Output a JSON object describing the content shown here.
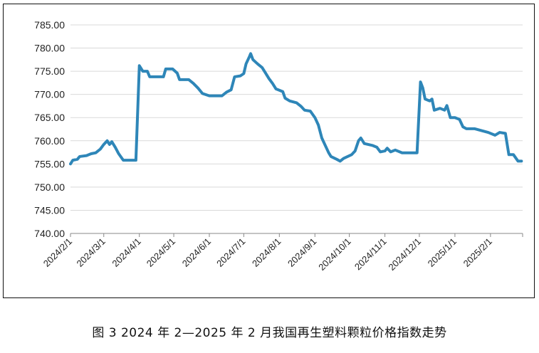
{
  "caption": "图 3  2024 年 2—2025 年 2 月我国再生塑料颗粒价格指数走势",
  "colors": {
    "series": "#2e86b8",
    "grid": "#d9d9d9",
    "axis": "#888888",
    "text": "#222222"
  },
  "chart_data": {
    "type": "line",
    "title": "",
    "xlabel": "",
    "ylabel": "",
    "ylim": [
      740,
      785
    ],
    "y_ticks": [
      "740.00",
      "745.00",
      "750.00",
      "755.00",
      "760.00",
      "765.00",
      "770.00",
      "775.00",
      "780.00",
      "785.00"
    ],
    "x_ticks": [
      "2024/2/1",
      "2024/3/1",
      "2024/4/1",
      "2024/5/1",
      "2024/6/1",
      "2024/7/1",
      "2024/8/1",
      "2024/9/1",
      "2024/10/1",
      "2024/11/1",
      "2024/12/1",
      "2025/1/1",
      "2025/2/1"
    ],
    "grid": true,
    "legend": "none",
    "series": [
      {
        "points": [
          [
            "2024/2/1",
            755.0
          ],
          [
            "2024/2/3",
            755.8
          ],
          [
            "2024/2/7",
            756.0
          ],
          [
            "2024/2/9",
            756.6
          ],
          [
            "2024/2/15",
            756.8
          ],
          [
            "2024/2/19",
            757.2
          ],
          [
            "2024/2/23",
            757.4
          ],
          [
            "2024/2/27",
            758.2
          ],
          [
            "2024/3/1",
            759.2
          ],
          [
            "2024/3/4",
            760.0
          ],
          [
            "2024/3/6",
            759.2
          ],
          [
            "2024/3/8",
            759.8
          ],
          [
            "2024/3/11",
            758.6
          ],
          [
            "2024/3/14",
            757.2
          ],
          [
            "2024/3/18",
            755.8
          ],
          [
            "2024/3/29",
            755.8
          ],
          [
            "2024/4/1",
            776.2
          ],
          [
            "2024/4/4",
            775.0
          ],
          [
            "2024/4/8",
            775.0
          ],
          [
            "2024/4/10",
            773.8
          ],
          [
            "2024/4/22",
            773.8
          ],
          [
            "2024/4/24",
            775.5
          ],
          [
            "2024/4/30",
            775.5
          ],
          [
            "2024/5/4",
            774.6
          ],
          [
            "2024/5/6",
            773.2
          ],
          [
            "2024/5/14",
            773.2
          ],
          [
            "2024/5/18",
            772.4
          ],
          [
            "2024/5/22",
            771.4
          ],
          [
            "2024/5/26",
            770.2
          ],
          [
            "2024/6/1",
            769.7
          ],
          [
            "2024/6/12",
            769.7
          ],
          [
            "2024/6/16",
            770.5
          ],
          [
            "2024/6/20",
            771.0
          ],
          [
            "2024/6/23",
            773.8
          ],
          [
            "2024/6/28",
            774.0
          ],
          [
            "2024/7/1",
            774.5
          ],
          [
            "2024/7/3",
            776.6
          ],
          [
            "2024/7/6",
            778.2
          ],
          [
            "2024/7/7",
            778.8
          ],
          [
            "2024/7/9",
            777.5
          ],
          [
            "2024/7/13",
            776.6
          ],
          [
            "2024/7/17",
            775.8
          ],
          [
            "2024/7/20",
            774.6
          ],
          [
            "2024/7/23",
            773.4
          ],
          [
            "2024/7/26",
            772.4
          ],
          [
            "2024/7/29",
            771.2
          ],
          [
            "2024/8/4",
            770.6
          ],
          [
            "2024/8/6",
            769.2
          ],
          [
            "2024/8/10",
            768.6
          ],
          [
            "2024/8/16",
            768.2
          ],
          [
            "2024/8/20",
            767.4
          ],
          [
            "2024/8/23",
            766.6
          ],
          [
            "2024/8/28",
            766.4
          ],
          [
            "2024/9/1",
            765.0
          ],
          [
            "2024/9/4",
            763.4
          ],
          [
            "2024/9/7",
            760.6
          ],
          [
            "2024/9/10",
            759.0
          ],
          [
            "2024/9/13",
            757.4
          ],
          [
            "2024/9/15",
            756.6
          ],
          [
            "2024/9/20",
            756.0
          ],
          [
            "2024/9/23",
            755.6
          ],
          [
            "2024/9/26",
            756.2
          ],
          [
            "2024/10/3",
            757.0
          ],
          [
            "2024/10/6",
            757.8
          ],
          [
            "2024/10/9",
            760.0
          ],
          [
            "2024/10/11",
            760.6
          ],
          [
            "2024/10/14",
            759.4
          ],
          [
            "2024/10/21",
            759.0
          ],
          [
            "2024/10/25",
            758.6
          ],
          [
            "2024/10/28",
            757.6
          ],
          [
            "2024/11/1",
            757.8
          ],
          [
            "2024/11/3",
            758.4
          ],
          [
            "2024/11/6",
            757.6
          ],
          [
            "2024/11/10",
            758.0
          ],
          [
            "2024/11/16",
            757.4
          ],
          [
            "2024/11/19",
            757.4
          ],
          [
            "2024/11/29",
            757.4
          ],
          [
            "2024/12/2",
            772.7
          ],
          [
            "2024/12/4",
            771.4
          ],
          [
            "2024/12/6",
            769.0
          ],
          [
            "2024/12/10",
            768.6
          ],
          [
            "2024/12/12",
            769.0
          ],
          [
            "2024/12/14",
            766.6
          ],
          [
            "2024/12/19",
            767.0
          ],
          [
            "2024/12/23",
            766.6
          ],
          [
            "2024/12/25",
            767.6
          ],
          [
            "2024/12/28",
            765.0
          ],
          [
            "2025/1/1",
            765.0
          ],
          [
            "2025/1/5",
            764.6
          ],
          [
            "2025/1/8",
            763.0
          ],
          [
            "2025/1/11",
            762.6
          ],
          [
            "2025/1/18",
            762.6
          ],
          [
            "2025/1/24",
            762.2
          ],
          [
            "2025/1/30",
            761.8
          ],
          [
            "2025/2/5",
            761.2
          ],
          [
            "2025/2/9",
            761.8
          ],
          [
            "2025/2/14",
            761.6
          ],
          [
            "2025/2/17",
            757.0
          ],
          [
            "2025/2/21",
            757.0
          ],
          [
            "2025/2/25",
            755.6
          ],
          [
            "2025/2/28",
            755.6
          ]
        ]
      }
    ]
  }
}
